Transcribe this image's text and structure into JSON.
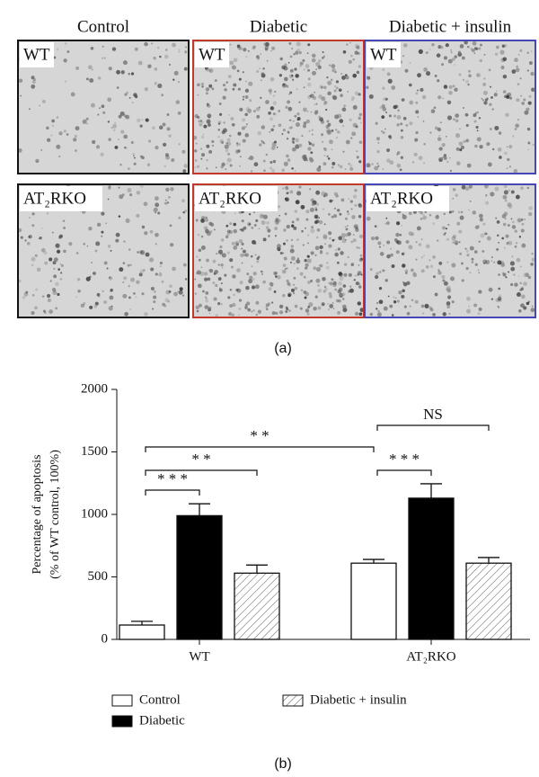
{
  "panel_a": {
    "columns": [
      "Control",
      "Diabetic",
      "Diabetic + insulin"
    ],
    "border_colors": [
      "#111111",
      "#c0392b",
      "#4646b4"
    ],
    "rows": [
      "WT",
      "AT₂RKO"
    ],
    "label": "(a)"
  },
  "chart_data": {
    "type": "bar",
    "panel_label": "(b)",
    "ylabel": [
      "Percentage of apoptosis",
      "(% of WT control, 100%)"
    ],
    "categories": [
      "WT",
      "AT₂RKO"
    ],
    "series": [
      {
        "name": "Control",
        "color": "#ffffff",
        "values": [
          115,
          610
        ],
        "errors": [
          30,
          30
        ]
      },
      {
        "name": "Diabetic",
        "color": "#000000",
        "values": [
          990,
          1130
        ],
        "errors": [
          95,
          115
        ]
      },
      {
        "name": "Diabetic + insulin",
        "color": "#ffffff",
        "hatch": true,
        "values": [
          530,
          610
        ],
        "errors": [
          65,
          45
        ]
      }
    ],
    "annotations": [
      "* * *",
      "* *",
      "* *",
      "* * *",
      "NS"
    ],
    "ylim": [
      0,
      2000
    ],
    "yticks": [
      0,
      500,
      1000,
      1500,
      2000
    ],
    "grid": false
  }
}
